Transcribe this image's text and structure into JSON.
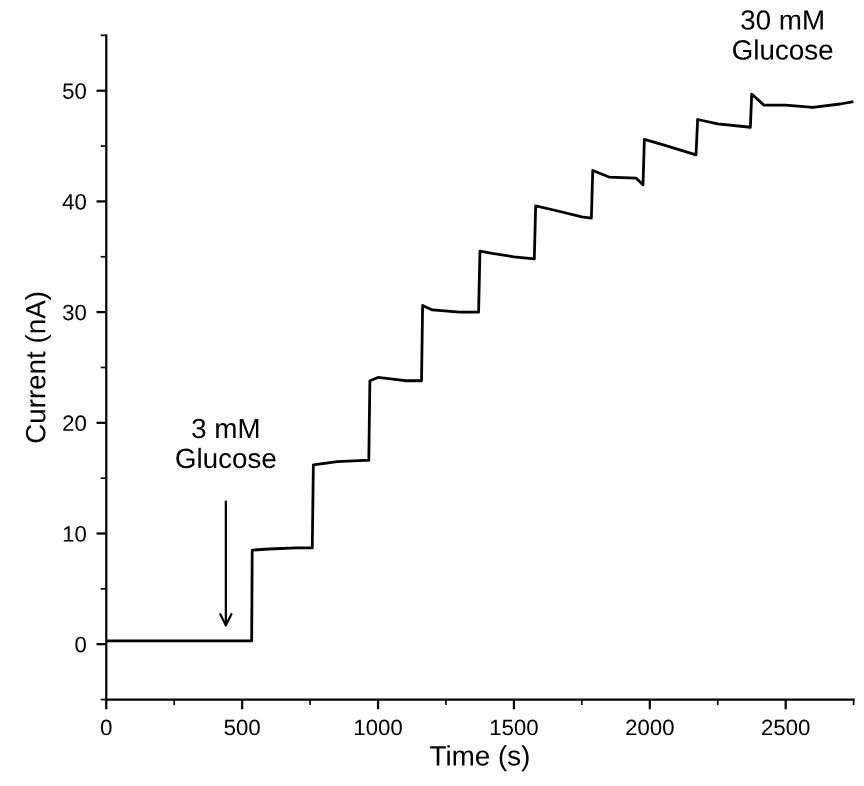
{
  "chart_data": {
    "type": "line",
    "xlabel": "Time (s)",
    "ylabel": "Current (nA)",
    "series": [
      {
        "color": "#000000",
        "x": [
          0,
          535,
          537,
          600,
          700,
          758,
          762,
          850,
          950,
          966,
          970,
          1000,
          1100,
          1160,
          1164,
          1200,
          1300,
          1370,
          1375,
          1420,
          1500,
          1575,
          1580,
          1650,
          1750,
          1785,
          1790,
          1850,
          1950,
          1975,
          1980,
          2050,
          2170,
          2176,
          2250,
          2370,
          2375,
          2420,
          2500,
          2600,
          2700,
          2745
        ],
        "values": [
          0.3,
          0.3,
          8.5,
          8.6,
          8.7,
          8.7,
          16.2,
          16.5,
          16.6,
          16.6,
          23.8,
          24.1,
          23.8,
          23.8,
          30.6,
          30.2,
          30.0,
          30.0,
          35.5,
          35.3,
          35.0,
          34.8,
          39.6,
          39.2,
          38.6,
          38.5,
          42.8,
          42.2,
          42.1,
          41.5,
          45.6,
          45.1,
          44.2,
          47.4,
          47.0,
          46.7,
          49.7,
          48.7,
          48.7,
          48.5,
          48.8,
          49.0
        ]
      }
    ],
    "xlim": [
      0,
      2750
    ],
    "ylim": [
      -5,
      55
    ],
    "xticks": [
      0,
      500,
      1000,
      1500,
      2000,
      2500
    ],
    "yticks": [
      0,
      10,
      20,
      30,
      40,
      50
    ],
    "grid": false,
    "legend": false,
    "marker": "none",
    "line_style": "solid",
    "annotations": [
      "3 mM\nGlucose",
      "30 mM\nGlucose"
    ]
  }
}
